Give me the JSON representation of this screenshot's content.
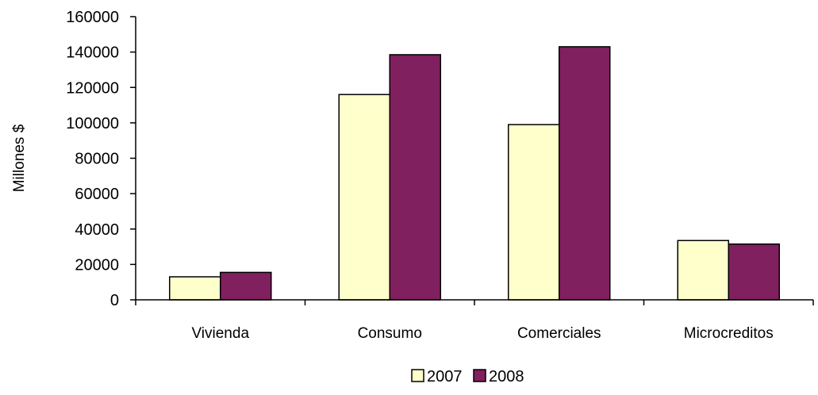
{
  "chart_data": {
    "type": "bar",
    "title": "",
    "xlabel": "",
    "ylabel": "Millones $",
    "ylim": [
      0,
      160000
    ],
    "yticks": [
      0,
      20000,
      40000,
      60000,
      80000,
      100000,
      120000,
      140000,
      160000
    ],
    "categories": [
      "Vivienda",
      "Consumo",
      "Comerciales",
      "Microcreditos"
    ],
    "series": [
      {
        "name": "2007",
        "color": "#FFFFCC",
        "values": [
          13000,
          116000,
          99000,
          33500
        ]
      },
      {
        "name": "2008",
        "color": "#80205F",
        "values": [
          15500,
          138500,
          143000,
          31500
        ]
      }
    ],
    "grid": false,
    "legend": "bottom"
  }
}
